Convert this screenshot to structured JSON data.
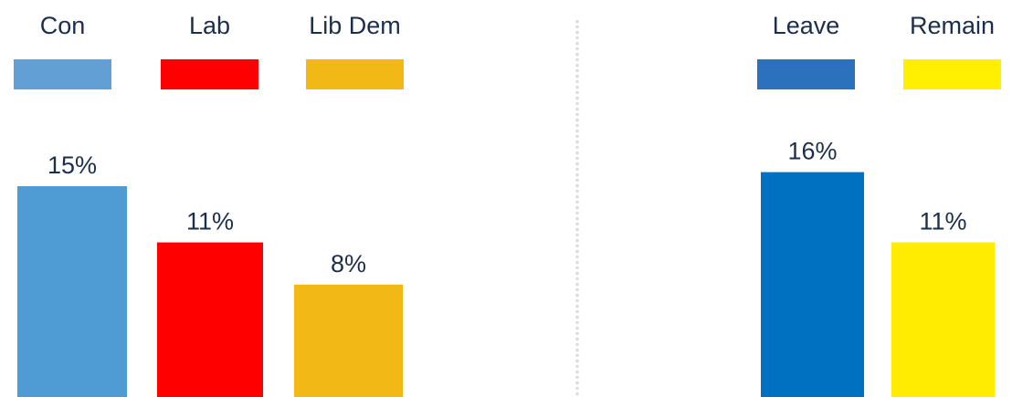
{
  "chart_data": [
    {
      "type": "bar",
      "categories": [
        "Con",
        "Lab",
        "Lib Dem"
      ],
      "values": [
        15,
        11,
        8
      ],
      "value_suffix": "%",
      "colors": [
        "#4f9bd3",
        "#ff0000",
        "#f2b816"
      ],
      "legend_colors": [
        "#629fd4",
        "#ff0000",
        "#f2b816"
      ],
      "legend": [
        "Con",
        "Lab",
        "Lib Dem"
      ],
      "legend_placement": "top",
      "grid": false,
      "ylim": [
        0,
        17
      ]
    },
    {
      "type": "bar",
      "categories": [
        "Leave",
        "Remain"
      ],
      "values": [
        16,
        11
      ],
      "value_suffix": "%",
      "colors": [
        "#0070c0",
        "#ffec00"
      ],
      "legend_colors": [
        "#2c71bb",
        "#ffef00"
      ],
      "legend": [
        "Leave",
        "Remain"
      ],
      "legend_placement": "top",
      "grid": false,
      "ylim": [
        0,
        17
      ]
    }
  ],
  "divider_color": "#d9d9d9"
}
